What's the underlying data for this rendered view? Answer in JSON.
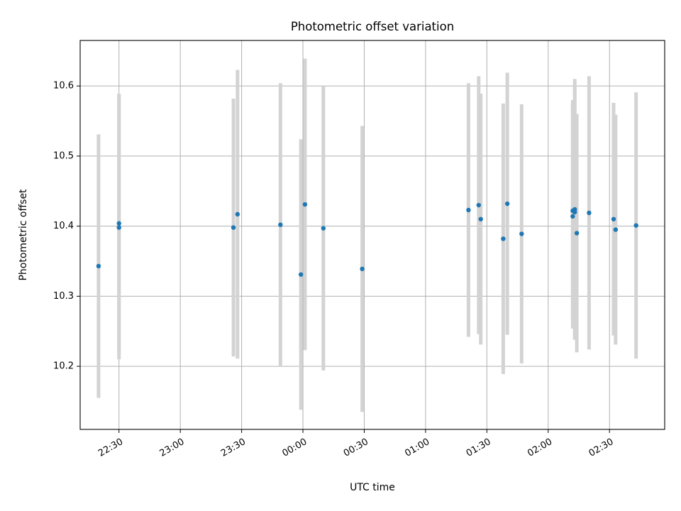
{
  "chart_data": {
    "type": "scatter",
    "title": "Photometric offset variation",
    "xlabel": "UTC time",
    "ylabel": "Photometric offset",
    "x_axis_kind": "time",
    "xlim": [
      "22:11",
      "02:57"
    ],
    "ylim": [
      10.11,
      10.665
    ],
    "grid": true,
    "x_ticks": [
      {
        "value": "22:30",
        "label": "22:30"
      },
      {
        "value": "23:00",
        "label": "23:00"
      },
      {
        "value": "23:30",
        "label": "23:30"
      },
      {
        "value": "00:00",
        "label": "00:00"
      },
      {
        "value": "00:30",
        "label": "00:30"
      },
      {
        "value": "01:00",
        "label": "01:00"
      },
      {
        "value": "01:30",
        "label": "01:30"
      },
      {
        "value": "02:00",
        "label": "02:00"
      },
      {
        "value": "02:30",
        "label": "02:30"
      }
    ],
    "y_ticks": [
      {
        "value": 10.2,
        "label": "10.2"
      },
      {
        "value": 10.3,
        "label": "10.3"
      },
      {
        "value": 10.4,
        "label": "10.4"
      },
      {
        "value": 10.5,
        "label": "10.5"
      },
      {
        "value": 10.6,
        "label": "10.6"
      }
    ],
    "marker_color": "#1f77b4",
    "errorbar_color": "#d3d3d3",
    "series": [
      {
        "points": [
          {
            "t": "22:20",
            "y": 10.343,
            "err": 0.188
          },
          {
            "t": "22:30",
            "y": 10.404,
            "err": 0.185
          },
          {
            "t": "22:30",
            "y": 10.398,
            "err": 0.188
          },
          {
            "t": "23:26",
            "y": 10.398,
            "err": 0.184
          },
          {
            "t": "23:28",
            "y": 10.417,
            "err": 0.206
          },
          {
            "t": "23:49",
            "y": 10.402,
            "err": 0.202
          },
          {
            "t": "23:59",
            "y": 10.331,
            "err": 0.193
          },
          {
            "t": "00:01",
            "y": 10.431,
            "err": 0.208
          },
          {
            "t": "00:10",
            "y": 10.397,
            "err": 0.203
          },
          {
            "t": "00:29",
            "y": 10.339,
            "err": 0.204
          },
          {
            "t": "01:21",
            "y": 10.423,
            "err": 0.181
          },
          {
            "t": "01:26",
            "y": 10.43,
            "err": 0.184
          },
          {
            "t": "01:27",
            "y": 10.41,
            "err": 0.179
          },
          {
            "t": "01:38",
            "y": 10.382,
            "err": 0.193
          },
          {
            "t": "01:40",
            "y": 10.432,
            "err": 0.187
          },
          {
            "t": "01:47",
            "y": 10.389,
            "err": 0.185
          },
          {
            "t": "02:12",
            "y": 10.414,
            "err": 0.16
          },
          {
            "t": "02:12",
            "y": 10.422,
            "err": 0.158
          },
          {
            "t": "02:13",
            "y": 10.424,
            "err": 0.186
          },
          {
            "t": "02:13",
            "y": 10.42,
            "err": 0.18
          },
          {
            "t": "02:14",
            "y": 10.39,
            "err": 0.17
          },
          {
            "t": "02:20",
            "y": 10.419,
            "err": 0.195
          },
          {
            "t": "02:32",
            "y": 10.41,
            "err": 0.166
          },
          {
            "t": "02:33",
            "y": 10.395,
            "err": 0.164
          },
          {
            "t": "02:43",
            "y": 10.401,
            "err": 0.19
          }
        ]
      }
    ]
  }
}
